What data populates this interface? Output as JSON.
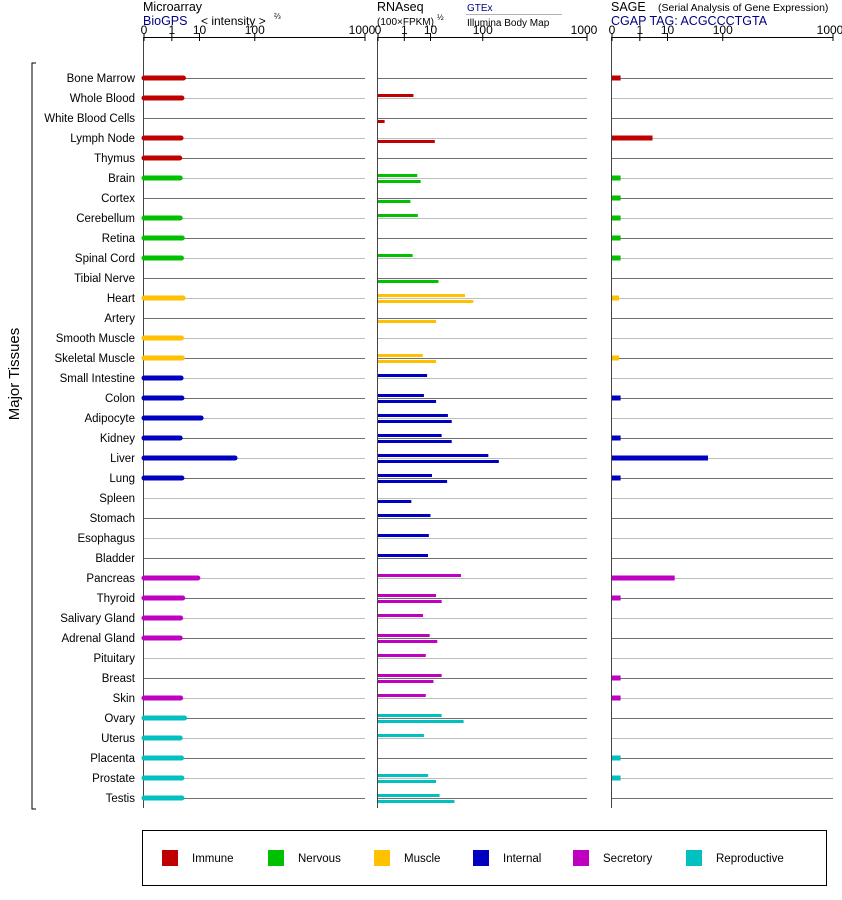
{
  "panels": [
    {
      "title": "Microarray",
      "source": "BioGPS",
      "measure": "< intensity >",
      "measure_exp": "⅔",
      "subtitle": "",
      "subtitle2": ""
    },
    {
      "title": "RNAseq",
      "source": "(100×FPKM)",
      "measure": "",
      "measure_exp": "½",
      "subtitle": "GTEx",
      "subtitle2": "Illumina Body Map"
    },
    {
      "title": "SAGE",
      "source": "CGAP TAG: ACGCCCTGTA",
      "measure": "",
      "measure_exp": "",
      "subtitle": "(Serial Analysis of Gene Expression)",
      "subtitle2": ""
    }
  ],
  "y_group_label": "Major Tissues",
  "axis_ticks": [
    {
      "label": "0",
      "value": 0
    },
    {
      "label": "1",
      "value": 1
    },
    {
      "label": "10",
      "value": 10
    },
    {
      "label": "100",
      "value": 100
    },
    {
      "label": "1000",
      "value": 1000
    }
  ],
  "legend": [
    {
      "key": "immune",
      "label": "Immune",
      "color": "#c00000"
    },
    {
      "key": "nervous",
      "label": "Nervous",
      "color": "#00c000"
    },
    {
      "key": "muscle",
      "label": "Muscle",
      "color": "#ffc000"
    },
    {
      "key": "internal",
      "label": "Internal",
      "color": "#0000c0"
    },
    {
      "key": "secretory",
      "label": "Secretory",
      "color": "#c000c0"
    },
    {
      "key": "reproductive",
      "label": "Reproductive",
      "color": "#00c0c0"
    }
  ],
  "chart_data": {
    "type": "bar",
    "orientation": "horizontal",
    "x_scale": "power (ticks 0, 1, 10, 100, 1000)",
    "xlim": [
      0,
      1000
    ],
    "series": [
      {
        "name": "Microarray"
      },
      {
        "name": "RNAseq GTEx"
      },
      {
        "name": "RNAseq Illumina Body Map"
      },
      {
        "name": "SAGE"
      }
    ],
    "tissues": [
      {
        "name": "Bone Marrow",
        "group": "immune",
        "microarray": 3.2,
        "gtex": null,
        "ibm": null,
        "sage": 0.02
      },
      {
        "name": "Whole Blood",
        "group": "immune",
        "microarray": 2.8,
        "gtex": 2.7,
        "ibm": null,
        "sage": null
      },
      {
        "name": "White Blood Cells",
        "group": "immune",
        "microarray": null,
        "gtex": null,
        "ibm": 0.01,
        "sage": null
      },
      {
        "name": "Lymph Node",
        "group": "immune",
        "microarray": 2.6,
        "gtex": null,
        "ibm": 13,
        "sage": 3.5
      },
      {
        "name": "Thymus",
        "group": "immune",
        "microarray": 2.3,
        "gtex": null,
        "ibm": null,
        "sage": null
      },
      {
        "name": "Brain",
        "group": "nervous",
        "microarray": 2.4,
        "gtex": 3.8,
        "ibm": 5,
        "sage": 0.02
      },
      {
        "name": "Cortex",
        "group": "nervous",
        "microarray": null,
        "gtex": null,
        "ibm": 2,
        "sage": 0.02
      },
      {
        "name": "Cerebellum",
        "group": "nervous",
        "microarray": 2.4,
        "gtex": 4,
        "ibm": null,
        "sage": 0.02
      },
      {
        "name": "Retina",
        "group": "nervous",
        "microarray": 2.9,
        "gtex": null,
        "ibm": null,
        "sage": 0.02
      },
      {
        "name": "Spinal Cord",
        "group": "nervous",
        "microarray": 2.7,
        "gtex": 2.5,
        "ibm": null,
        "sage": 0.02
      },
      {
        "name": "Tibial Nerve",
        "group": "nervous",
        "microarray": null,
        "gtex": null,
        "ibm": 16,
        "sage": null
      },
      {
        "name": "Heart",
        "group": "muscle",
        "microarray": 3.1,
        "gtex": 54,
        "ibm": 73,
        "sage": 0.01
      },
      {
        "name": "Artery",
        "group": "muscle",
        "microarray": null,
        "gtex": null,
        "ibm": 14,
        "sage": null
      },
      {
        "name": "Smooth Muscle",
        "group": "muscle",
        "microarray": 2.7,
        "gtex": null,
        "ibm": null,
        "sage": null
      },
      {
        "name": "Skeletal Muscle",
        "group": "muscle",
        "microarray": 2.9,
        "gtex": 5.9,
        "ibm": 14,
        "sage": 0.01
      },
      {
        "name": "Small Intestine",
        "group": "internal",
        "microarray": 2.6,
        "gtex": 8,
        "ibm": null,
        "sage": null
      },
      {
        "name": "Colon",
        "group": "internal",
        "microarray": 2.8,
        "gtex": 6.4,
        "ibm": 14,
        "sage": 0.02
      },
      {
        "name": "Adipocyte",
        "group": "internal",
        "microarray": 11,
        "gtex": 26,
        "ibm": 31,
        "sage": null
      },
      {
        "name": "Kidney",
        "group": "internal",
        "microarray": 2.4,
        "gtex": 19,
        "ibm": 31,
        "sage": 0.02
      },
      {
        "name": "Liver",
        "group": "internal",
        "microarray": 52,
        "gtex": 119,
        "ibm": 161,
        "sage": 62
      },
      {
        "name": "Lung",
        "group": "internal",
        "microarray": 2.8,
        "gtex": 11,
        "ibm": 25,
        "sage": 0.02
      },
      {
        "name": "Spleen",
        "group": "internal",
        "microarray": null,
        "gtex": null,
        "ibm": 2.2,
        "sage": null
      },
      {
        "name": "Stomach",
        "group": "internal",
        "microarray": null,
        "gtex": 10,
        "ibm": null,
        "sage": null
      },
      {
        "name": "Esophagus",
        "group": "internal",
        "microarray": null,
        "gtex": 9,
        "ibm": null,
        "sage": null
      },
      {
        "name": "Bladder",
        "group": "internal",
        "microarray": null,
        "gtex": 8.5,
        "ibm": null,
        "sage": null
      },
      {
        "name": "Pancreas",
        "group": "secretory",
        "microarray": 9,
        "gtex": 46,
        "ibm": null,
        "sage": 15
      },
      {
        "name": "Thyroid",
        "group": "secretory",
        "microarray": 3,
        "gtex": 14,
        "ibm": 19,
        "sage": 0.02
      },
      {
        "name": "Salivary Gland",
        "group": "secretory",
        "microarray": 2.5,
        "gtex": 6,
        "ibm": null,
        "sage": null
      },
      {
        "name": "Adrenal Gland",
        "group": "secretory",
        "microarray": 2.4,
        "gtex": 9.5,
        "ibm": 15,
        "sage": null
      },
      {
        "name": "Pituitary",
        "group": "secretory",
        "microarray": null,
        "gtex": 7.3,
        "ibm": null,
        "sage": null
      },
      {
        "name": "Breast",
        "group": "secretory",
        "microarray": null,
        "gtex": 19,
        "ibm": 12,
        "sage": 0.02
      },
      {
        "name": "Skin",
        "group": "secretory",
        "microarray": 2.5,
        "gtex": 7.3,
        "ibm": null,
        "sage": 0.02
      },
      {
        "name": "Ovary",
        "group": "reproductive",
        "microarray": 3.5,
        "gtex": 19,
        "ibm": 51,
        "sage": null
      },
      {
        "name": "Uterus",
        "group": "reproductive",
        "microarray": 2.4,
        "gtex": 6.4,
        "ibm": null,
        "sage": null
      },
      {
        "name": "Placenta",
        "group": "reproductive",
        "microarray": 2.7,
        "gtex": null,
        "ibm": null,
        "sage": 0.02
      },
      {
        "name": "Prostate",
        "group": "reproductive",
        "microarray": 2.8,
        "gtex": 8.6,
        "ibm": 14,
        "sage": 0.02
      },
      {
        "name": "Testis",
        "group": "reproductive",
        "microarray": 2.8,
        "gtex": 17,
        "ibm": 35,
        "sage": null
      }
    ]
  }
}
